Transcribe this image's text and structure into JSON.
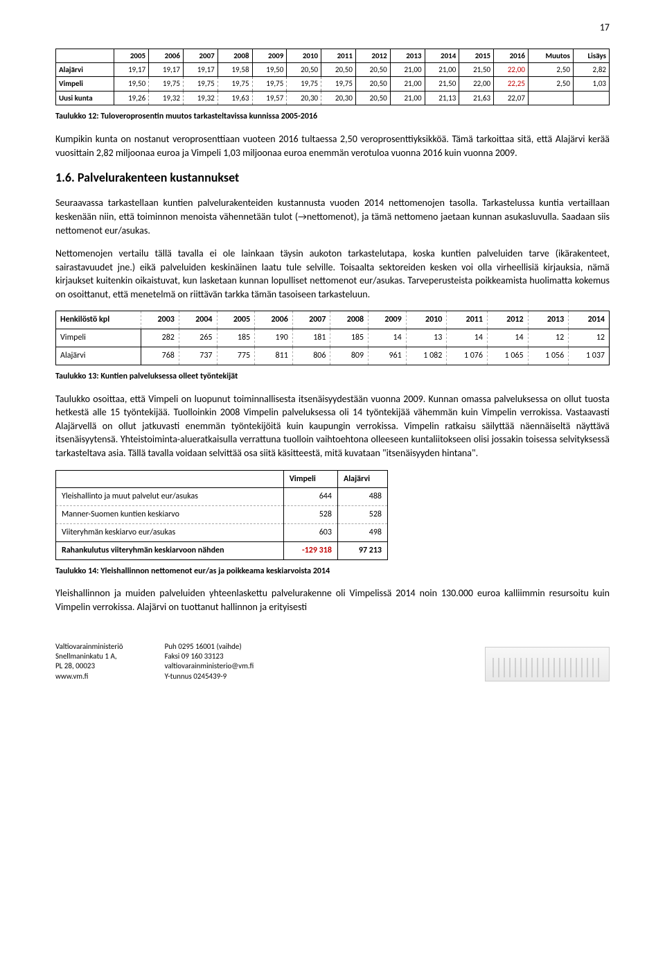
{
  "page_number": "17",
  "table1": {
    "headers": [
      "",
      "2005",
      "2006",
      "2007",
      "2008",
      "2009",
      "2010",
      "2011",
      "2012",
      "2013",
      "2014",
      "2015",
      "2016",
      "Muutos",
      "Lisäys"
    ],
    "rows": [
      [
        "Alajärvi",
        "19,17",
        "19,17",
        "19,17",
        "19,58",
        "19,50",
        "20,50",
        "20,50",
        "20,50",
        "21,00",
        "21,00",
        "21,50",
        "22,00",
        "2,50",
        "2,82"
      ],
      [
        "Vimpeli",
        "19,50",
        "19,75",
        "19,75",
        "19,75",
        "19,75",
        "19,75",
        "19,75",
        "20,50",
        "21,00",
        "21,50",
        "22,00",
        "22,25",
        "2,50",
        "1,03"
      ],
      [
        "Uusi kunta",
        "19,26",
        "19,32",
        "19,32",
        "19,63",
        "19,57",
        "20,30",
        "20,30",
        "20,50",
        "21,00",
        "21,13",
        "21,63",
        "22,07",
        "",
        ""
      ]
    ],
    "red_cells": [
      [
        0,
        12
      ],
      [
        1,
        12
      ]
    ]
  },
  "caption1": "Taulukko 12: Tuloveroprosentin muutos tarkasteltavissa kunnissa 2005-2016",
  "para1": "Kumpikin kunta on nostanut veroprosenttiaan vuoteen 2016 tultaessa 2,50 veroprosenttiyksikköä. Tämä tarkoittaa sitä, että Alajärvi kerää vuosittain 2,82 miljoonaa euroa ja Vimpeli 1,03 miljoonaa euroa enemmän verotuloa vuonna 2016 kuin vuonna 2009.",
  "heading": "1.6. Palvelurakenteen kustannukset",
  "para2": "Seuraavassa tarkastellaan kuntien palvelurakenteiden kustannusta vuoden 2014 nettomenojen tasolla. Tarkastelussa kuntia vertaillaan keskenään niin, että toiminnon menoista vähennetään tulot (→nettomenot), ja tämä nettomeno jaetaan kunnan asukasluvulla. Saadaan siis nettomenot eur/asukas.",
  "para3": "Nettomenojen vertailu tällä tavalla ei ole lainkaan täysin aukoton tarkastelutapa, koska kuntien palveluiden tarve (ikärakenteet, sairastavuudet jne.) eikä palveluiden keskinäinen laatu tule selville. Toisaalta sektoreiden kesken voi olla virheellisiä kirjauksia, nämä kirjaukset kuitenkin oikaistuvat, kun lasketaan kunnan lopulliset nettomenot eur/asukas. Tarveperusteista poikkeamista huolimatta kokemus on osoittanut, että menetelmä on riittävän tarkka tämän tasoiseen tarkasteluun.",
  "table2": {
    "headers": [
      "Henkilöstö kpl",
      "2003",
      "2004",
      "2005",
      "2006",
      "2007",
      "2008",
      "2009",
      "2010",
      "2011",
      "2012",
      "2013",
      "2014"
    ],
    "rows": [
      [
        "Vimpeli",
        "282",
        "265",
        "185",
        "190",
        "181",
        "185",
        "14",
        "13",
        "14",
        "14",
        "12",
        "12"
      ],
      [
        "Alajärvi",
        "768",
        "737",
        "775",
        "811",
        "806",
        "809",
        "961",
        "1 082",
        "1 076",
        "1 065",
        "1 056",
        "1 037"
      ]
    ]
  },
  "caption2": "Taulukko 13: Kuntien palveluksessa olleet työntekijät",
  "para4": "Taulukko osoittaa, että Vimpeli on luopunut toiminnallisesta itsenäisyydestään vuonna 2009. Kunnan omassa palveluksessa on ollut tuosta hetkestä alle 15 työntekijää. Tuolloinkin 2008 Vimpelin palveluksessa oli 14 työntekijää vähemmän kuin Vimpelin verrokissa. Vastaavasti Alajärvellä on ollut jatkuvasti enemmän työntekijöitä kuin kaupungin verrokissa. Vimpelin ratkaisu säilyttää näennäiseltä näyttävä itsenäisyytensä. Yhteistoiminta-alueratkaisulla verrattuna tuolloin vaihtoehtona olleeseen kuntaliitokseen olisi jossakin toisessa selvityksessä tarkasteltava asia. Tällä tavalla voidaan selvittää osa siitä käsitteestä, mitä kuvataan \"itsenäisyyden hintana\".",
  "table3": {
    "headers": [
      "",
      "Vimpeli",
      "Alajärvi"
    ],
    "rows": [
      [
        "Yleishallinto ja muut palvelut eur/asukas",
        "644",
        "488"
      ],
      [
        "Manner-Suomen kuntien keskiarvo",
        "528",
        "528"
      ],
      [
        "Viiteryhmän keskiarvo eur/asukas",
        "603",
        "498"
      ],
      [
        "Rahankulutus viiteryhmän keskiarvoon nähden",
        "-129 318",
        "97 213"
      ]
    ],
    "red_cells": [
      [
        3,
        1
      ]
    ]
  },
  "caption3": "Taulukko 14: Yleishallinnon nettomenot eur/as ja poikkeama keskiarvoista 2014",
  "para5": "Yleishallinnon ja muiden palveluiden yhteenlaskettu palvelurakenne oli Vimpelissä 2014 noin 130.000 euroa kalliimmin resursoitu kuin Vimpelin verrokissa. Alajärvi on tuottanut hallinnon ja erityisesti",
  "footer": {
    "col1": [
      "Valtiovarainministeriö",
      "Snellmaninkatu 1 A,",
      "PL 28, 00023",
      "www.vm.fi"
    ],
    "col2": [
      "Puh 0295 16001 (vaihde)",
      "Faksi 09 160 33123",
      "valtiovarainministerio@vm.fi",
      "Y-tunnus 0245439-9"
    ]
  }
}
